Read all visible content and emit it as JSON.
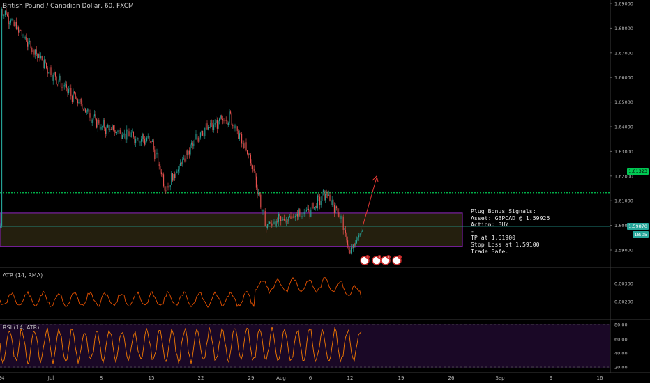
{
  "header": {
    "title": "British Pound / Canadian Dollar, 60, FXCM"
  },
  "price_axis": {
    "ticks": [
      "1.69000",
      "1.68000",
      "1.67000",
      "1.66000",
      "1.65000",
      "1.64000",
      "1.63000",
      "1.62000",
      "1.61000",
      "1.60000",
      "1.59000"
    ],
    "green_level_tag": "1.61323",
    "last_price_tag": "1.59870",
    "countdown_tag": "18:05"
  },
  "time_axis": {
    "ticks": [
      "24",
      "Jul",
      "8",
      "15",
      "22",
      "29",
      "Aug",
      "6",
      "12",
      "19",
      "26",
      "Sep",
      "9",
      "16"
    ]
  },
  "atr_panel": {
    "label": "ATR (14, RMA)",
    "ticks": [
      "0.00300",
      "0.00200"
    ]
  },
  "rsi_panel": {
    "label": "RSI (14, ATR)",
    "ticks": [
      "80.00",
      "60.00",
      "40.00",
      "20.00"
    ]
  },
  "signal_note": {
    "line1": "Plug Bonus Signals:",
    "line2": "Asset: GBPCAD @ 1.59925",
    "line3": "Action: BUY",
    "line4": "-",
    "line5": "TP at 1.61900",
    "line6": "Stop Loss at 1.59100",
    "line7": "Trade Safe."
  },
  "event_icons": [
    "1",
    "1",
    "2",
    "3"
  ],
  "colors": {
    "up": "#26a69a",
    "down": "#ef5350",
    "level": "#00c853",
    "zone_border": "#7b1fa2",
    "atr": "#e65100",
    "rsi": "#f57c00",
    "rsi_bg": "#1a0826",
    "arrow": "#e53935"
  },
  "chart_data": {
    "type": "candlestick",
    "symbol": "GBPCAD",
    "interval": "60",
    "ylim": [
      1.585,
      1.69
    ],
    "key_points": [
      {
        "x": "Jun 24",
        "y": 1.688
      },
      {
        "x": "Jul 1",
        "y": 1.662
      },
      {
        "x": "Jul 8",
        "y": 1.64
      },
      {
        "x": "Jul 15",
        "y": 1.634
      },
      {
        "x": "Jul 17",
        "y": 1.615
      },
      {
        "x": "Jul 22",
        "y": 1.638
      },
      {
        "x": "Jul 26",
        "y": 1.644
      },
      {
        "x": "Jul 29",
        "y": 1.626
      },
      {
        "x": "Jul 31",
        "y": 1.6
      },
      {
        "x": "Aug 6",
        "y": 1.606
      },
      {
        "x": "Aug 8",
        "y": 1.613
      },
      {
        "x": "Aug 10",
        "y": 1.604
      },
      {
        "x": "Aug 12",
        "y": 1.5885
      },
      {
        "x": "Aug 13",
        "y": 1.599
      }
    ],
    "resistance_level": 1.61323,
    "zone": {
      "top": 1.605,
      "bottom": 1.5915
    },
    "signal": {
      "action": "BUY",
      "entry": 1.59925,
      "tp": 1.619,
      "sl": 1.591
    }
  }
}
